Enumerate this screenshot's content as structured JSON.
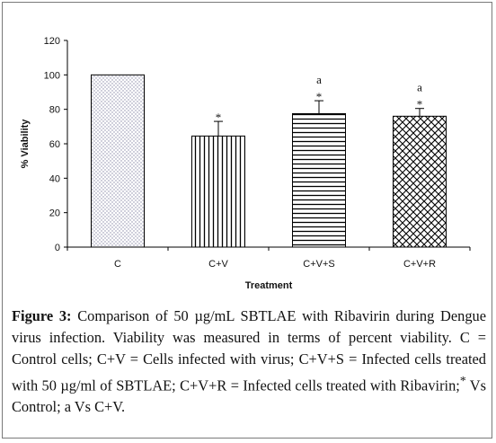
{
  "chart_data": {
    "type": "bar",
    "categories": [
      "C",
      "C+V",
      "C+V+S",
      "C+V+R"
    ],
    "values": [
      100,
      64.5,
      77.5,
      76
    ],
    "errors": [
      0,
      8.5,
      7.5,
      4.5
    ],
    "significance": [
      [],
      [
        "*"
      ],
      [
        "a",
        "*"
      ],
      [
        "a",
        "*"
      ]
    ],
    "patterns": [
      "dots",
      "vertical-lines",
      "horizontal-lines",
      "crosshatch"
    ],
    "xlabel": "Treatment",
    "ylabel": "% Viability",
    "ylim": [
      0,
      120
    ],
    "yticks": [
      0,
      20,
      40,
      60,
      80,
      100,
      120
    ],
    "grid": false,
    "legend": "none"
  },
  "caption": {
    "label": "Figure 3:",
    "text": "Comparison of 50 µg/mL SBTLAE with Ribavirin during Dengue virus infection. Viability was measured in terms of percent viability. C = Control cells; C+V = Cells infected with virus; C+V+S = Infected cells treated with 50 µg/ml of SBTLAE; C+V+R = Infected cells treated with Ribavirin;",
    "sup": "*",
    "tail": " Vs Control; a Vs C+V."
  }
}
